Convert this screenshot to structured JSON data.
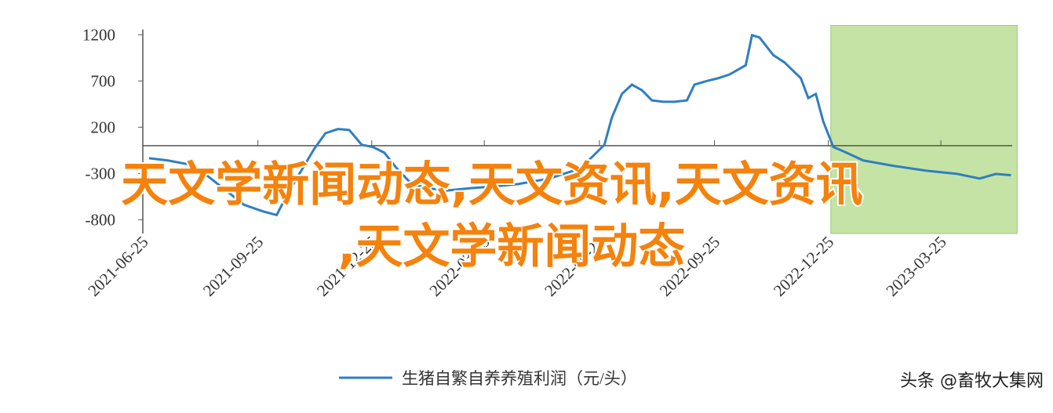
{
  "chart_data": {
    "type": "line",
    "x": [
      "2021-06-30",
      "2021-07-15",
      "2021-07-31",
      "2021-08-16",
      "2021-09-01",
      "2021-09-14",
      "2021-09-29",
      "2021-10-10",
      "2021-10-18",
      "2021-10-27",
      "2021-11-09",
      "2021-11-18",
      "2021-11-28",
      "2021-12-07",
      "2021-12-17",
      "2021-12-26",
      "2022-01-04",
      "2022-01-14",
      "2022-01-26",
      "2022-02-08",
      "2022-02-23",
      "2022-03-14",
      "2022-04-02",
      "2022-04-21",
      "2022-05-16",
      "2022-06-10",
      "2022-06-29",
      "2022-07-05",
      "2022-07-13",
      "2022-07-21",
      "2022-07-29",
      "2022-08-06",
      "2022-08-15",
      "2022-08-24",
      "2022-09-03",
      "2022-09-09",
      "2022-09-19",
      "2022-09-28",
      "2022-10-07",
      "2022-10-20",
      "2022-10-25",
      "2022-10-31",
      "2022-11-11",
      "2022-11-20",
      "2022-12-03",
      "2022-12-09",
      "2022-12-15",
      "2022-12-21",
      "2022-12-29",
      "2023-01-06",
      "2023-01-22",
      "2023-02-16",
      "2023-03-13",
      "2023-04-07",
      "2023-04-25",
      "2023-05-08",
      "2023-05-20"
    ],
    "series": [
      {
        "name": "生猪自繁自养养殖利润（元/头）",
        "color": "#2f7fc1",
        "values": [
          -135,
          -160,
          -200,
          -330,
          -500,
          -640,
          -710,
          -750,
          -540,
          -330,
          -35,
          135,
          180,
          170,
          10,
          -15,
          -75,
          -245,
          -415,
          -460,
          -485,
          -460,
          -440,
          -415,
          -355,
          -245,
          10,
          305,
          560,
          660,
          600,
          490,
          475,
          475,
          490,
          660,
          700,
          730,
          770,
          870,
          1195,
          1170,
          980,
          900,
          730,
          515,
          560,
          260,
          -15,
          -60,
          -160,
          -220,
          -270,
          -305,
          -355,
          -305,
          -320
        ]
      }
    ],
    "xlim": [
      "2021-06-25",
      "2023-05-21"
    ],
    "xticks": [
      "2021-06-25",
      "2021-09-25",
      "2021-12-25",
      "2022-03-25",
      "2022-06-25",
      "2022-09-25",
      "2022-12-25",
      "2023-03-25"
    ],
    "ylim": [
      -950,
      1300
    ],
    "yticks": [
      1200,
      700,
      200,
      -300,
      -800
    ],
    "highlight": {
      "x": [
        "2022-12-27",
        "2023-05-25"
      ],
      "color": "#c5e3a4"
    },
    "watermark": "头条 @畜牧大集网"
  },
  "overlay": {
    "lines": [
      "天文学新闻动态,天文资讯,天文资讯",
      ",天文学新闻动态"
    ]
  }
}
